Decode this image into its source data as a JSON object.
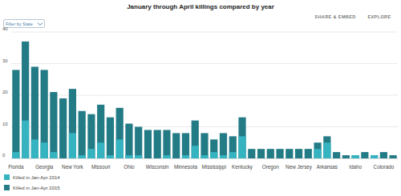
{
  "chart_data": {
    "type": "bar",
    "title": "January through April killings compared by year",
    "categories": [
      "Florida",
      null,
      null,
      "Georgia",
      null,
      null,
      "New York",
      null,
      null,
      "Missouri",
      null,
      null,
      "Ohio",
      null,
      null,
      "Wisconsin",
      null,
      null,
      "Minnesota",
      null,
      null,
      "Mississippi",
      null,
      null,
      "Kentucky",
      null,
      null,
      "Oregon",
      null,
      null,
      "New Jersey",
      null,
      null,
      "Arkansas",
      null,
      null,
      "Idaho",
      null,
      null,
      "Colorado",
      null
    ],
    "series": [
      {
        "name": "Killed in Jan-Apr 2015",
        "color": "#237b86",
        "values": [
          28,
          37,
          29,
          28,
          21,
          19,
          22,
          15,
          14,
          17,
          13,
          16,
          11,
          10,
          9,
          9,
          9,
          8,
          8,
          12,
          8,
          6,
          8,
          7,
          13,
          3,
          3,
          3,
          3,
          3,
          3,
          3,
          5,
          7,
          2,
          1,
          1,
          2,
          1,
          2,
          1
        ]
      },
      {
        "name": "Killed in Jan-Apr 2014",
        "color": "#36b3c0",
        "values": [
          2,
          12,
          6,
          5,
          2,
          0,
          8,
          1,
          3,
          5,
          1,
          6,
          1,
          1,
          0,
          0,
          1,
          0,
          1,
          4,
          1,
          2,
          1,
          2,
          7,
          0,
          0,
          0,
          0,
          0,
          0,
          0,
          3,
          5,
          0,
          0,
          1,
          0,
          1,
          0,
          0
        ]
      }
    ],
    "ylim": [
      0,
      40
    ],
    "yticks": [
      0,
      10,
      20,
      30,
      40
    ],
    "grid": true,
    "legend": "bottom-left",
    "controls": {
      "share": "SHARE & EMBED",
      "explore": "EXPLORE",
      "filter": "Filter by State"
    }
  }
}
